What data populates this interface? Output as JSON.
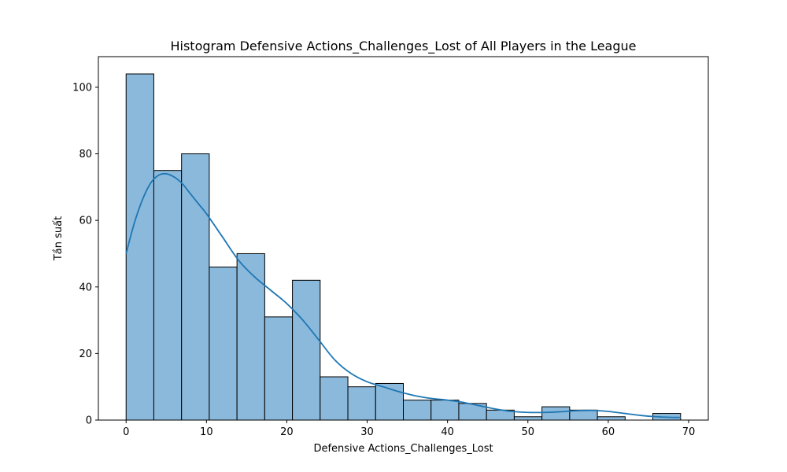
{
  "chart_data": {
    "type": "bar",
    "subtype": "histogram",
    "title": "Histogram Defensive Actions_Challenges_Lost of All Players in the League",
    "xlabel": "Defensive Actions_Challenges_Lost",
    "ylabel": "Tần suất",
    "xlim": [
      -3.45,
      72.45
    ],
    "ylim": [
      0,
      109.2
    ],
    "xticks": [
      0,
      10,
      20,
      30,
      40,
      50,
      60,
      70
    ],
    "yticks": [
      0,
      20,
      40,
      60,
      80,
      100
    ],
    "bin_edges": [
      0,
      3.45,
      6.9,
      10.35,
      13.8,
      17.25,
      20.7,
      24.15,
      27.6,
      31.05,
      34.5,
      37.95,
      41.4,
      44.85,
      48.3,
      51.75,
      55.2,
      58.65,
      62.1,
      65.55,
      69
    ],
    "counts": [
      104,
      75,
      80,
      46,
      50,
      31,
      42,
      13,
      10,
      11,
      6,
      6,
      5,
      3,
      1,
      4,
      3,
      1,
      0,
      2
    ],
    "kde": {
      "x": [
        0,
        1,
        2,
        3,
        4,
        5,
        6,
        7,
        8,
        9,
        10,
        12,
        14,
        16,
        18,
        20,
        22,
        24,
        26,
        28,
        30,
        32,
        34,
        36,
        38,
        40,
        42,
        44,
        46,
        48,
        50,
        52,
        54,
        56,
        58,
        60,
        62,
        64,
        66,
        68,
        69
      ],
      "y": [
        50,
        59,
        66,
        71,
        73.5,
        74,
        73,
        71,
        68,
        65,
        62,
        55,
        48,
        43,
        39,
        35,
        30,
        24,
        18,
        14,
        11.5,
        10,
        8.5,
        7.3,
        6.5,
        6,
        5.3,
        4.3,
        3.3,
        2.6,
        2.3,
        2.3,
        2.5,
        2.8,
        2.9,
        2.6,
        2,
        1.4,
        1,
        0.8,
        0.8
      ]
    },
    "grid": false,
    "legend": false,
    "colors": {
      "bar_fill": "#8bb9db",
      "bar_edge": "#000000",
      "kde_line": "#1f77b4"
    }
  }
}
